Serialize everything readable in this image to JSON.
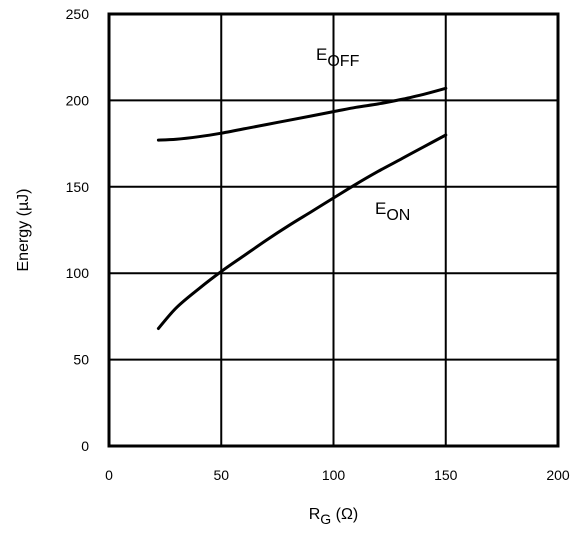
{
  "chart_data": {
    "type": "line",
    "xlabel": {
      "main": "R",
      "sub": "G",
      "unit": " (Ω)"
    },
    "ylabel": "Energy (µJ)",
    "xlim": [
      0,
      200
    ],
    "ylim": [
      0,
      250
    ],
    "x_ticks": [
      0,
      50,
      100,
      150,
      200
    ],
    "y_ticks": [
      0,
      50,
      100,
      150,
      200,
      250
    ],
    "grid": true,
    "series": [
      {
        "name": "E_OFF",
        "label_main": "E",
        "label_sub": "OFF",
        "x": [
          22,
          30,
          40,
          50,
          60,
          70,
          80,
          90,
          100,
          110,
          120,
          130,
          140,
          150
        ],
        "y": [
          177,
          177.5,
          179,
          181,
          183.5,
          186,
          188.5,
          191,
          193.5,
          196,
          198,
          200.5,
          203.5,
          207
        ]
      },
      {
        "name": "E_ON",
        "label_main": "E",
        "label_sub": "ON",
        "x": [
          22,
          30,
          40,
          50,
          60,
          70,
          80,
          90,
          100,
          110,
          120,
          130,
          140,
          150
        ],
        "y": [
          68,
          80,
          91,
          101,
          110,
          119,
          127.5,
          135.5,
          143.5,
          151.5,
          159,
          166,
          173,
          180
        ]
      }
    ]
  }
}
